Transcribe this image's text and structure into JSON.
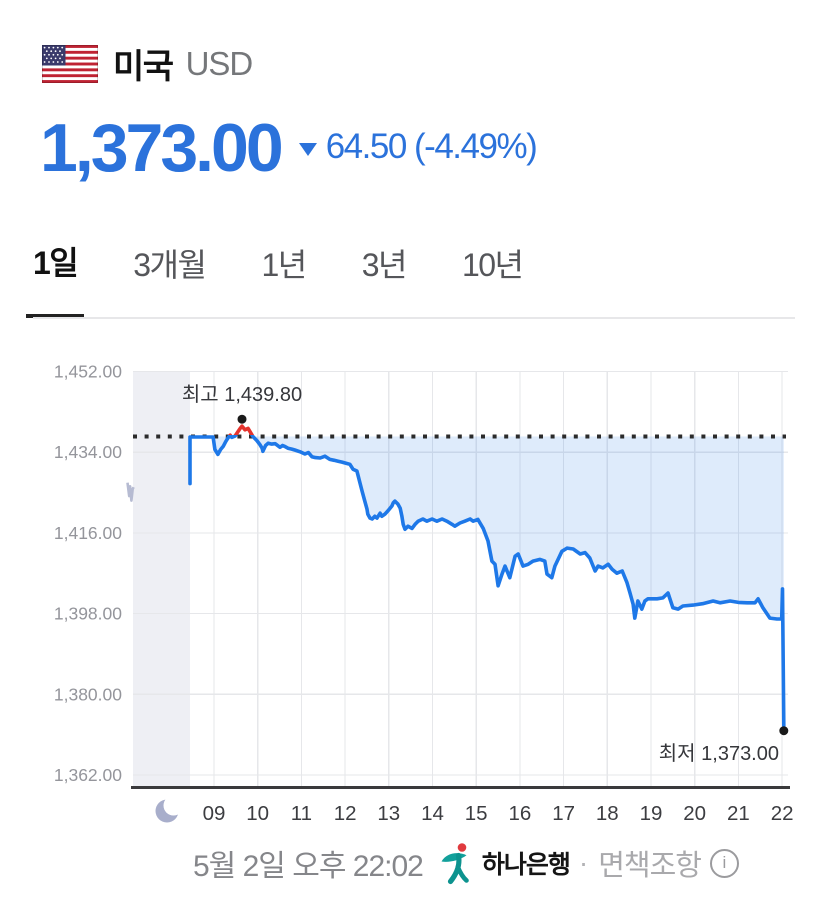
{
  "header": {
    "country": "미국",
    "currency": "USD"
  },
  "quote": {
    "price": "1,373.00",
    "change": "64.50 (-4.49%)",
    "direction": "down",
    "accent_color": "#2b72db"
  },
  "tabs": [
    {
      "label": "1일",
      "active": true
    },
    {
      "label": "3개월",
      "active": false
    },
    {
      "label": "1년",
      "active": false
    },
    {
      "label": "3년",
      "active": false
    },
    {
      "label": "10년",
      "active": false
    }
  ],
  "footer": {
    "timestamp": "5월 2일 오후 22:02",
    "provider": "하나은행",
    "separator": "·",
    "disclaimer": "면책조항",
    "info_icon": "i"
  },
  "chart_data": {
    "type": "area",
    "title": "",
    "xlabel": "",
    "ylabel": "",
    "ylim": [
      1362,
      1452
    ],
    "grid": true,
    "prev_close": 1437.5,
    "high": {
      "label": "최고 1,439.80",
      "hour": 9.64,
      "value": 1439.8
    },
    "low": {
      "label": "최저 1,373.00",
      "hour": 22.04,
      "value": 1373.0
    },
    "y_ticks": [
      {
        "value": 1452,
        "label": "1,452.00"
      },
      {
        "value": 1434,
        "label": "1,434.00"
      },
      {
        "value": 1416,
        "label": "1,416.00"
      },
      {
        "value": 1398,
        "label": "1,398.00"
      },
      {
        "value": 1380,
        "label": "1,380.00"
      },
      {
        "value": 1362,
        "label": "1,362.00"
      }
    ],
    "x_ticks": [
      {
        "hour": 9,
        "label": "09"
      },
      {
        "hour": 10,
        "label": "10"
      },
      {
        "hour": 11,
        "label": "11"
      },
      {
        "hour": 12,
        "label": "12"
      },
      {
        "hour": 13,
        "label": "13"
      },
      {
        "hour": 14,
        "label": "14"
      },
      {
        "hour": 15,
        "label": "15"
      },
      {
        "hour": 16,
        "label": "16"
      },
      {
        "hour": 17,
        "label": "17"
      },
      {
        "hour": 18,
        "label": "18"
      },
      {
        "hour": 19,
        "label": "19"
      },
      {
        "hour": 20,
        "label": "20"
      },
      {
        "hour": 21,
        "label": "21"
      },
      {
        "hour": 22,
        "label": "22"
      }
    ],
    "night_series": [
      [
        7.02,
        1427.2
      ],
      [
        7.06,
        1424.2
      ],
      [
        7.08,
        1426.4
      ],
      [
        7.11,
        1423.2
      ],
      [
        7.14,
        1425.8
      ],
      [
        7.16,
        1426.2
      ]
    ],
    "series": [
      [
        8.45,
        1427.0
      ],
      [
        8.45,
        1437.4
      ],
      [
        8.6,
        1437.4
      ],
      [
        8.8,
        1437.4
      ],
      [
        8.98,
        1437.4
      ],
      [
        9.02,
        1434.6
      ],
      [
        9.07,
        1433.8
      ],
      [
        9.09,
        1433.5
      ],
      [
        9.15,
        1434.6
      ],
      [
        9.21,
        1435.3
      ],
      [
        9.27,
        1436.4
      ],
      [
        9.32,
        1437.2
      ],
      [
        9.37,
        1437.8
      ],
      [
        9.41,
        1437.3
      ],
      [
        9.48,
        1437.6
      ],
      [
        9.55,
        1438.6
      ],
      [
        9.6,
        1439.3
      ],
      [
        9.64,
        1439.8
      ],
      [
        9.71,
        1439.0
      ],
      [
        9.78,
        1439.3
      ],
      [
        9.85,
        1438.2
      ],
      [
        9.89,
        1437.5
      ],
      [
        9.98,
        1436.6
      ],
      [
        10.05,
        1435.7
      ],
      [
        10.1,
        1434.9
      ],
      [
        10.12,
        1434.2
      ],
      [
        10.18,
        1435.5
      ],
      [
        10.24,
        1436.0
      ],
      [
        10.32,
        1435.8
      ],
      [
        10.4,
        1435.9
      ],
      [
        10.51,
        1435.1
      ],
      [
        10.57,
        1435.5
      ],
      [
        10.62,
        1435.3
      ],
      [
        10.69,
        1434.9
      ],
      [
        10.78,
        1434.7
      ],
      [
        10.85,
        1434.5
      ],
      [
        10.97,
        1434.1
      ],
      [
        11.08,
        1433.6
      ],
      [
        11.16,
        1433.9
      ],
      [
        11.24,
        1433.0
      ],
      [
        11.32,
        1432.8
      ],
      [
        11.43,
        1432.7
      ],
      [
        11.54,
        1433.1
      ],
      [
        11.65,
        1432.4
      ],
      [
        11.75,
        1432.2
      ],
      [
        11.84,
        1432.0
      ],
      [
        11.93,
        1431.8
      ],
      [
        12.0,
        1431.6
      ],
      [
        12.11,
        1431.3
      ],
      [
        12.18,
        1430.2
      ],
      [
        12.27,
        1429.8
      ],
      [
        12.3,
        1428.7
      ],
      [
        12.34,
        1427.1
      ],
      [
        12.39,
        1425.3
      ],
      [
        12.45,
        1423.1
      ],
      [
        12.5,
        1421.3
      ],
      [
        12.52,
        1420.2
      ],
      [
        12.57,
        1419.3
      ],
      [
        12.62,
        1419.1
      ],
      [
        12.68,
        1419.7
      ],
      [
        12.73,
        1419.3
      ],
      [
        12.8,
        1420.4
      ],
      [
        12.84,
        1419.7
      ],
      [
        12.91,
        1420.2
      ],
      [
        12.98,
        1420.9
      ],
      [
        13.07,
        1422.0
      ],
      [
        13.1,
        1422.7
      ],
      [
        13.14,
        1423.1
      ],
      [
        13.21,
        1422.4
      ],
      [
        13.26,
        1421.5
      ],
      [
        13.3,
        1419.7
      ],
      [
        13.33,
        1417.9
      ],
      [
        13.37,
        1416.8
      ],
      [
        13.44,
        1417.5
      ],
      [
        13.53,
        1417.0
      ],
      [
        13.6,
        1417.9
      ],
      [
        13.67,
        1418.6
      ],
      [
        13.78,
        1419.1
      ],
      [
        13.87,
        1418.6
      ],
      [
        13.99,
        1419.1
      ],
      [
        14.1,
        1418.6
      ],
      [
        14.22,
        1419.1
      ],
      [
        14.33,
        1418.6
      ],
      [
        14.45,
        1417.9
      ],
      [
        14.51,
        1417.5
      ],
      [
        14.63,
        1418.2
      ],
      [
        14.74,
        1418.6
      ],
      [
        14.86,
        1419.1
      ],
      [
        14.93,
        1418.6
      ],
      [
        15.04,
        1419.0
      ],
      [
        15.16,
        1417.0
      ],
      [
        15.27,
        1414.2
      ],
      [
        15.36,
        1409.7
      ],
      [
        15.43,
        1409.0
      ],
      [
        15.5,
        1404.2
      ],
      [
        15.59,
        1406.8
      ],
      [
        15.66,
        1408.6
      ],
      [
        15.77,
        1406.0
      ],
      [
        15.89,
        1410.8
      ],
      [
        15.96,
        1411.3
      ],
      [
        16.07,
        1408.6
      ],
      [
        16.19,
        1409.0
      ],
      [
        16.3,
        1409.7
      ],
      [
        16.46,
        1410.1
      ],
      [
        16.57,
        1409.7
      ],
      [
        16.62,
        1406.8
      ],
      [
        16.73,
        1406.0
      ],
      [
        16.8,
        1408.6
      ],
      [
        16.96,
        1411.9
      ],
      [
        17.08,
        1412.6
      ],
      [
        17.22,
        1412.4
      ],
      [
        17.38,
        1411.3
      ],
      [
        17.49,
        1411.6
      ],
      [
        17.6,
        1410.4
      ],
      [
        17.72,
        1407.5
      ],
      [
        17.79,
        1408.6
      ],
      [
        17.9,
        1408.2
      ],
      [
        18.02,
        1409.0
      ],
      [
        18.11,
        1407.9
      ],
      [
        18.22,
        1407.0
      ],
      [
        18.34,
        1407.5
      ],
      [
        18.45,
        1404.9
      ],
      [
        18.52,
        1402.6
      ],
      [
        18.59,
        1400.1
      ],
      [
        18.63,
        1397.0
      ],
      [
        18.7,
        1400.8
      ],
      [
        18.79,
        1399.0
      ],
      [
        18.86,
        1400.8
      ],
      [
        18.93,
        1401.3
      ],
      [
        19.14,
        1401.3
      ],
      [
        19.27,
        1401.5
      ],
      [
        19.39,
        1402.6
      ],
      [
        19.5,
        1399.3
      ],
      [
        19.62,
        1399.0
      ],
      [
        19.73,
        1399.7
      ],
      [
        19.96,
        1399.9
      ],
      [
        20.18,
        1400.2
      ],
      [
        20.42,
        1400.8
      ],
      [
        20.58,
        1400.4
      ],
      [
        20.81,
        1400.8
      ],
      [
        21.0,
        1400.5
      ],
      [
        21.2,
        1400.4
      ],
      [
        21.38,
        1400.4
      ],
      [
        21.45,
        1401.3
      ],
      [
        21.56,
        1399.3
      ],
      [
        21.72,
        1397.0
      ],
      [
        21.88,
        1396.8
      ],
      [
        21.99,
        1396.8
      ],
      [
        22.01,
        1403.5
      ],
      [
        22.04,
        1373.0
      ]
    ],
    "colors": {
      "line": "#1e78e8",
      "up": "#e5332d",
      "fill": "rgba(33,118,225,0.15)",
      "dotted": "#2b2b2b",
      "grid": "#e6e7ea",
      "axis": "#3a3a3c",
      "night_band": "#eeeff4",
      "night_line": "#b6bbd2",
      "moon": "#a8aecb",
      "y_label": "#94959b",
      "x_label": "#3c3d41",
      "annotation": "#36373b",
      "marker": "#1a1a1a"
    }
  }
}
